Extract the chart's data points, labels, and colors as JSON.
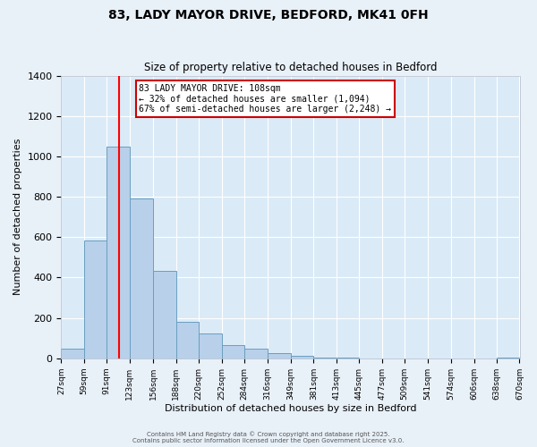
{
  "title": "83, LADY MAYOR DRIVE, BEDFORD, MK41 0FH",
  "subtitle": "Size of property relative to detached houses in Bedford",
  "xlabel": "Distribution of detached houses by size in Bedford",
  "ylabel": "Number of detached properties",
  "bar_color": "#b8d0ea",
  "bar_edge_color": "#6a9fc0",
  "background_color": "#daeaf7",
  "fig_background_color": "#e8f0f8",
  "grid_color": "#ffffff",
  "red_line_x": 108,
  "annotation_line1": "83 LADY MAYOR DRIVE: 108sqm",
  "annotation_line2": "← 32% of detached houses are smaller (1,094)",
  "annotation_line3": "67% of semi-detached houses are larger (2,248) →",
  "annotation_box_color": "#ffffff",
  "annotation_box_edge": "#cc0000",
  "ylim": [
    0,
    1400
  ],
  "yticks": [
    0,
    200,
    400,
    600,
    800,
    1000,
    1200,
    1400
  ],
  "bin_edges": [
    27,
    59,
    91,
    123,
    156,
    188,
    220,
    252,
    284,
    316,
    349,
    381,
    413,
    445,
    477,
    509,
    541,
    574,
    606,
    638,
    670
  ],
  "bin_values": [
    48,
    583,
    1050,
    793,
    435,
    181,
    122,
    65,
    48,
    27,
    13,
    4,
    2,
    1,
    0,
    0,
    0,
    0,
    0,
    3
  ],
  "footer_line1": "Contains HM Land Registry data © Crown copyright and database right 2025.",
  "footer_line2": "Contains public sector information licensed under the Open Government Licence v3.0."
}
